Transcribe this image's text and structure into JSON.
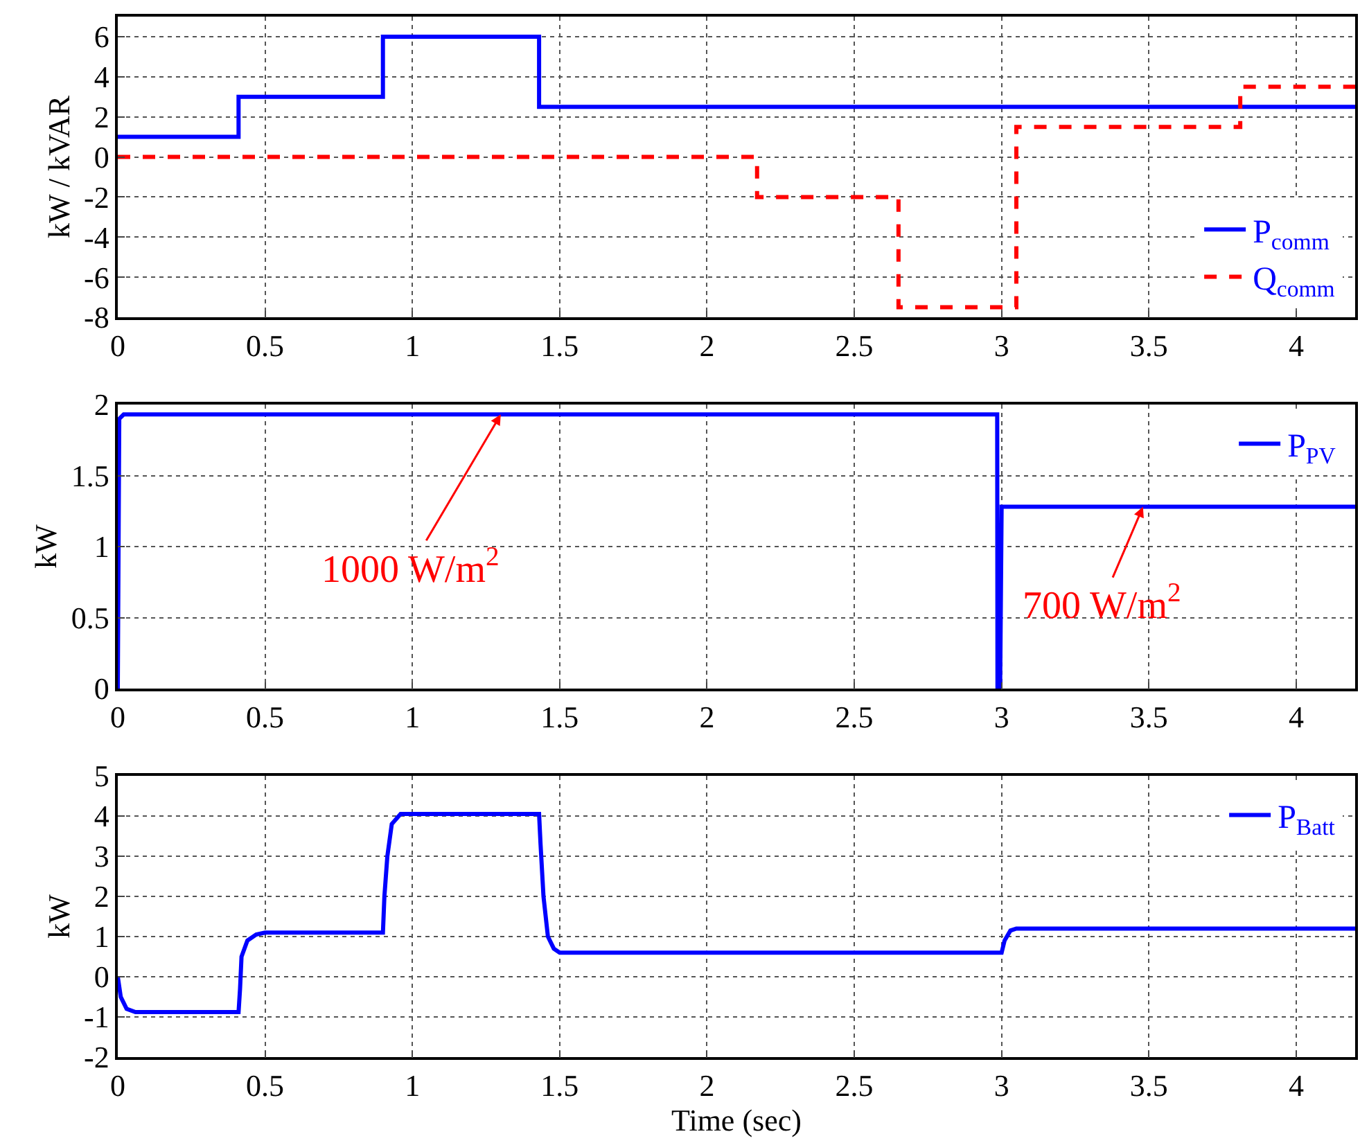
{
  "chart_data": [
    {
      "type": "step",
      "ylabel": "kW / kVAR",
      "xlim": [
        0,
        4.2
      ],
      "xticks": [
        0,
        0.5,
        1,
        1.5,
        2,
        2.5,
        3,
        3.5,
        4
      ],
      "ylim": [
        -8,
        7
      ],
      "yticks": [
        -8,
        -6,
        -4,
        -2,
        0,
        2,
        4,
        6
      ],
      "grid": true,
      "legend": "bottom right",
      "series": [
        {
          "name": "P$_{comm}$",
          "color": "#0000ff",
          "line_style": "solid",
          "x": [
            0,
            0.41,
            0.9,
            1.43,
            4.2
          ],
          "values": [
            1,
            3,
            6,
            2.5,
            2.5
          ]
        },
        {
          "name": "Q$_{comm}$",
          "color": "#ff0000",
          "line_style": "dashed",
          "x": [
            0,
            2.17,
            2.65,
            3.05,
            3.81,
            4.2
          ],
          "values": [
            0,
            -2,
            -7.5,
            1.5,
            3.5,
            3.5
          ]
        }
      ]
    },
    {
      "type": "line",
      "ylabel": "kW",
      "xlim": [
        0,
        4.2
      ],
      "xticks": [
        0,
        0.5,
        1,
        1.5,
        2,
        2.5,
        3,
        3.5,
        4
      ],
      "ylim": [
        0,
        2
      ],
      "yticks": [
        0,
        0.5,
        1,
        1.5,
        2
      ],
      "grid": true,
      "legend": "top right",
      "annotations": [
        {
          "text": "1000 W/m$^{2}$",
          "x": 1.3,
          "y": 1.93
        },
        {
          "text": "700 W/m$^{2}$",
          "x": 3.48,
          "y": 1.28
        }
      ],
      "series": [
        {
          "name": "P$_{PV}$",
          "color": "#0000ff",
          "line_style": "solid",
          "x": [
            0,
            0.005,
            0.02,
            2.985,
            2.986,
            2.995,
            3.0,
            4.2
          ],
          "values": [
            0,
            1.9,
            1.93,
            1.93,
            0,
            0,
            1.28,
            1.28
          ]
        }
      ]
    },
    {
      "type": "line",
      "xlabel": "Time (sec)",
      "ylabel": "kW",
      "xlim": [
        0,
        4.2
      ],
      "xticks": [
        0,
        0.5,
        1,
        1.5,
        2,
        2.5,
        3,
        3.5,
        4
      ],
      "ylim": [
        -2,
        5
      ],
      "yticks": [
        -2,
        -1,
        0,
        1,
        2,
        3,
        4,
        5
      ],
      "grid": true,
      "legend": "top right",
      "series": [
        {
          "name": "P$_{Batt}$",
          "color": "#0000ff",
          "line_style": "solid",
          "x": [
            0,
            0.01,
            0.03,
            0.06,
            0.41,
            0.415,
            0.42,
            0.44,
            0.47,
            0.5,
            0.9,
            0.905,
            0.915,
            0.93,
            0.96,
            1.43,
            1.435,
            1.445,
            1.46,
            1.48,
            1.5,
            3.0,
            3.01,
            3.03,
            3.05,
            4.2
          ],
          "values": [
            0,
            -0.5,
            -0.8,
            -0.88,
            -0.88,
            -0.3,
            0.5,
            0.9,
            1.05,
            1.1,
            1.1,
            2,
            3,
            3.8,
            4.05,
            4.05,
            3.3,
            2,
            1,
            0.7,
            0.6,
            0.6,
            0.9,
            1.15,
            1.2,
            1.2
          ]
        }
      ]
    }
  ]
}
